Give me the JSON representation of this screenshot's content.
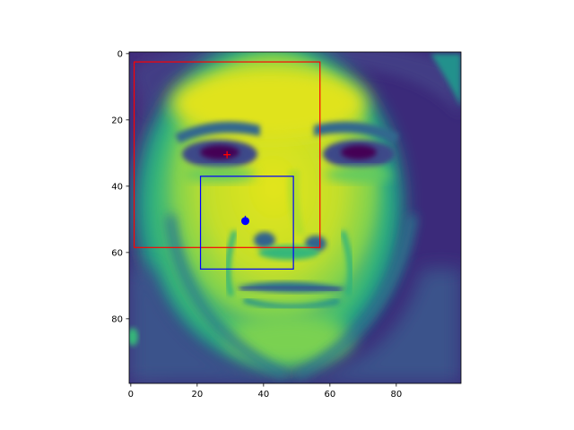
{
  "chart_data": {
    "type": "heatmap",
    "title": "",
    "xlabel": "",
    "ylabel": "",
    "colormap": "viridis",
    "image_extent": [
      -0.5,
      99.5,
      99.5,
      -0.5
    ],
    "xlim": [
      -0.5,
      99.5
    ],
    "ylim": [
      99.5,
      -0.5
    ],
    "x_ticks": [
      0,
      20,
      40,
      60,
      80
    ],
    "y_ticks": [
      0,
      20,
      40,
      60,
      80
    ],
    "x_tick_labels": [
      "0",
      "20",
      "40",
      "60",
      "80"
    ],
    "y_tick_labels": [
      "0",
      "20",
      "40",
      "60",
      "80"
    ],
    "grid": false,
    "rectangles": [
      {
        "color": "#ff0000",
        "x": 1,
        "y": 2.5,
        "width": 56,
        "height": 56
      },
      {
        "color": "#0000ff",
        "x": 21,
        "y": 37,
        "width": 28,
        "height": 28
      }
    ],
    "markers": [
      {
        "shape": "plus",
        "color": "#ff0000",
        "x": 29,
        "y": 30.5
      },
      {
        "shape": "plus",
        "color": "#0000ff",
        "x": 34.5,
        "y": 50
      },
      {
        "shape": "circle",
        "color": "#0000ff",
        "x": 34.5,
        "y": 50.5
      }
    ]
  }
}
